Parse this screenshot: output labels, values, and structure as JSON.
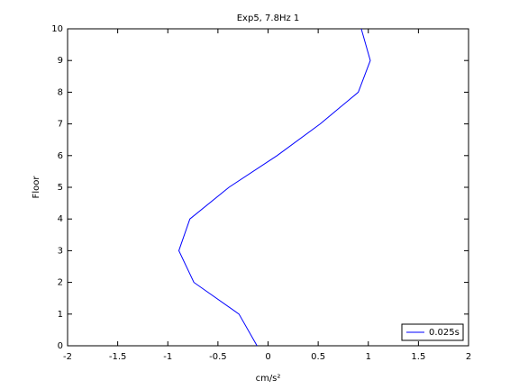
{
  "chart_data": {
    "type": "line",
    "title": "Exp5, 7.8Hz 1",
    "xlabel": "cm/s²",
    "ylabel": "Floor",
    "x": [
      -0.11,
      -0.29,
      -0.74,
      -0.89,
      -0.78,
      -0.39,
      0.09,
      0.52,
      0.9,
      1.02,
      0.93
    ],
    "series": [
      {
        "name": "0.025s",
        "color": "#0000ff",
        "values": [
          0,
          1,
          2,
          3,
          4,
          5,
          6,
          7,
          8,
          9,
          10
        ]
      }
    ],
    "xlim": [
      -2,
      2
    ],
    "xticks": [
      -2,
      -1.5,
      -1,
      -0.5,
      0,
      0.5,
      1,
      1.5,
      2
    ],
    "ylim": [
      0,
      10
    ],
    "yticks": [
      0,
      1,
      2,
      3,
      4,
      5,
      6,
      7,
      8,
      9,
      10
    ],
    "grid": false,
    "legend": "lower right"
  }
}
